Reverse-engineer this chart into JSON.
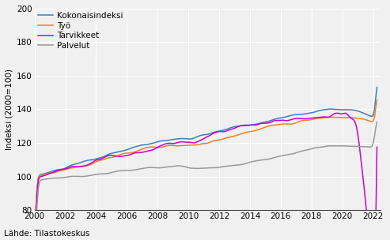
{
  "ylabel": "Indeksi (2000=100)",
  "source_text": "Lähde: Tilastokeskus",
  "ylim": [
    80,
    200
  ],
  "yticks": [
    80,
    100,
    120,
    140,
    160,
    180,
    200
  ],
  "legend_labels": [
    "Kokonaisindeksi",
    "Työ",
    "Tarvikkeet",
    "Palvelut"
  ],
  "colors": [
    "#3a80c0",
    "#f08020",
    "#cc00cc",
    "#999999"
  ],
  "start_year": 2000,
  "end_year": 2022.5,
  "xtick_years": [
    2000,
    2002,
    2004,
    2006,
    2008,
    2010,
    2012,
    2014,
    2016,
    2018,
    2020,
    2022
  ],
  "background_color": "#f0f0f0",
  "grid_color": "#ffffff",
  "line_width": 1.1
}
